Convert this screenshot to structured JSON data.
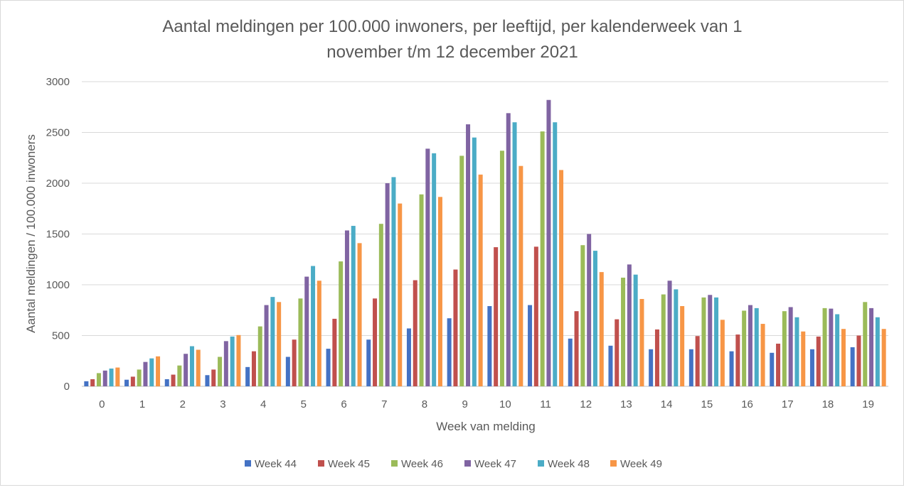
{
  "chart_data": {
    "type": "bar",
    "title_line1": "Aantal meldingen per 100.000 inwoners, per leeftijd, per kalenderweek van 1",
    "title_line2": "november t/m 12 december 2021",
    "xlabel": "Week van melding",
    "ylabel": "Aantal meldingen / 100.000 inwoners",
    "ylim": [
      0,
      3000
    ],
    "yticks": [
      0,
      500,
      1000,
      1500,
      2000,
      2500,
      3000
    ],
    "grid": true,
    "legend_position": "bottom",
    "categories": [
      "0",
      "1",
      "2",
      "3",
      "4",
      "5",
      "6",
      "7",
      "8",
      "9",
      "10",
      "11",
      "12",
      "13",
      "14",
      "15",
      "16",
      "17",
      "18",
      "19"
    ],
    "series": [
      {
        "name": "Week 44",
        "color": "#4472c4",
        "values": [
          50,
          65,
          70,
          110,
          190,
          290,
          370,
          460,
          570,
          670,
          790,
          800,
          470,
          400,
          365,
          365,
          345,
          330,
          365,
          385
        ]
      },
      {
        "name": "Week 45",
        "color": "#c0504d",
        "values": [
          70,
          95,
          115,
          165,
          345,
          460,
          665,
          865,
          1045,
          1150,
          1370,
          1375,
          740,
          660,
          560,
          495,
          510,
          420,
          490,
          500
        ]
      },
      {
        "name": "Week 46",
        "color": "#9bbb59",
        "values": [
          130,
          165,
          205,
          290,
          590,
          865,
          1230,
          1600,
          1890,
          2270,
          2320,
          2510,
          1390,
          1070,
          905,
          875,
          745,
          740,
          770,
          830
        ]
      },
      {
        "name": "Week 47",
        "color": "#8064a2",
        "values": [
          155,
          240,
          320,
          445,
          800,
          1080,
          1535,
          2000,
          2340,
          2580,
          2690,
          2820,
          1500,
          1200,
          1040,
          900,
          800,
          780,
          765,
          770
        ]
      },
      {
        "name": "Week 48",
        "color": "#4bacc6",
        "values": [
          175,
          275,
          395,
          490,
          880,
          1185,
          1580,
          2060,
          2295,
          2450,
          2600,
          2600,
          1335,
          1100,
          955,
          875,
          770,
          680,
          710,
          680
        ]
      },
      {
        "name": "Week 49",
        "color": "#f79646",
        "values": [
          185,
          295,
          360,
          505,
          830,
          1040,
          1410,
          1800,
          1865,
          2085,
          2170,
          2130,
          1125,
          860,
          790,
          655,
          615,
          540,
          565,
          565
        ]
      }
    ]
  }
}
